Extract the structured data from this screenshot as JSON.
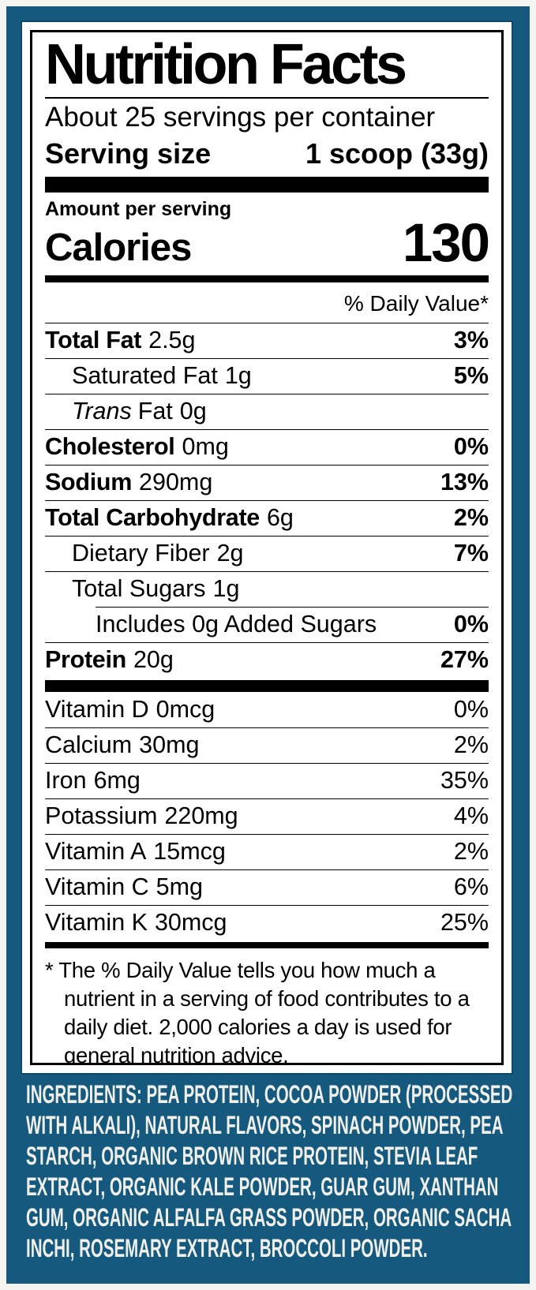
{
  "colors": {
    "background_teal": "#155a7e",
    "panel_white": "#ffffff",
    "text_black": "#000000",
    "ingredients_text": "#f0efe9",
    "outer_frame": "#f3f3ef"
  },
  "label": {
    "title": "Nutrition Facts",
    "servings_per_container": "About 25 servings per container",
    "serving_size_label": "Serving size",
    "serving_size_value": "1 scoop (33g)",
    "amount_per_serving": "Amount per serving",
    "calories_label": "Calories",
    "calories_value": "130",
    "daily_value_header": "% Daily Value*",
    "nutrient_rows": [
      {
        "name": "Total Fat",
        "amount": "2.5g",
        "dv": "3%",
        "bold": true,
        "indent": 0
      },
      {
        "name": "Saturated Fat",
        "amount": "1g",
        "dv": "5%",
        "bold": false,
        "indent": 1
      },
      {
        "name_italic": "Trans",
        "name": "Fat",
        "amount": "0g",
        "dv": "",
        "bold": false,
        "indent": 1
      },
      {
        "name": "Cholesterol",
        "amount": "0mg",
        "dv": "0%",
        "bold": true,
        "indent": 0
      },
      {
        "name": "Sodium",
        "amount": "290mg",
        "dv": "13%",
        "bold": true,
        "indent": 0
      },
      {
        "name": "Total Carbohydrate",
        "amount": "6g",
        "dv": "2%",
        "bold": true,
        "indent": 0
      },
      {
        "name": "Dietary Fiber",
        "amount": "2g",
        "dv": "7%",
        "bold": false,
        "indent": 1
      },
      {
        "name": "Total Sugars",
        "amount": "1g",
        "dv": "",
        "bold": false,
        "indent": 1
      },
      {
        "name": "Includes 0g Added Sugars",
        "amount": "",
        "dv": "0%",
        "bold": false,
        "indent": 2,
        "sep": "inset"
      },
      {
        "name": "Protein",
        "amount": "20g",
        "dv": "27%",
        "bold": true,
        "indent": 0
      }
    ],
    "vitamin_rows": [
      {
        "name": "Vitamin D",
        "amount": "0mcg",
        "dv": "0%"
      },
      {
        "name": "Calcium",
        "amount": "30mg",
        "dv": "2%"
      },
      {
        "name": "Iron",
        "amount": "6mg",
        "dv": "35%"
      },
      {
        "name": "Potassium",
        "amount": "220mg",
        "dv": "4%"
      },
      {
        "name": "Vitamin A",
        "amount": "15mcg",
        "dv": "2%"
      },
      {
        "name": "Vitamin C",
        "amount": "5mg",
        "dv": "6%"
      },
      {
        "name": "Vitamin K",
        "amount": "30mcg",
        "dv": "25%"
      }
    ],
    "footnote": "* The % Daily Value tells you how much a nutrient in a serving of food contributes to a daily diet. 2,000 calories a day is used for general nutrition advice."
  },
  "ingredients": {
    "text": "INGREDIENTS: PEA PROTEIN, COCOA POWDER (PROCESSED WITH ALKALI), NATURAL FLAVORS, SPINACH POWDER, PEA STARCH, ORGANIC BROWN RICE PROTEIN, STEVIA LEAF EXTRACT, ORGANIC KALE POWDER, GUAR GUM, XANTHAN GUM, ORGANIC ALFALFA GRASS POWDER, ORGANIC SACHA INCHI, ROSEMARY EXTRACT, BROCCOLI POWDER."
  }
}
